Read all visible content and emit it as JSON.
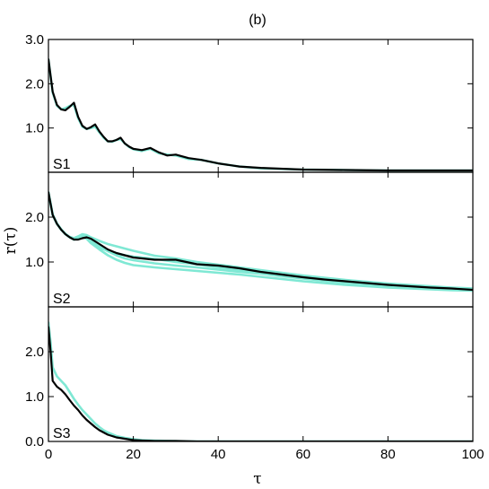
{
  "figure": {
    "title": "(b)",
    "xlabel": "τ",
    "ylabel": "r(τ)"
  },
  "chart_data": {
    "type": "line",
    "title": "(b)",
    "xlabel": "τ",
    "ylabel": "r(τ)",
    "xlim": [
      0,
      100
    ],
    "xticks": [
      0,
      20,
      40,
      60,
      80,
      100
    ],
    "xtick_labels": [
      "0",
      "20",
      "40",
      "60",
      "80",
      "100"
    ],
    "grid": false,
    "colors": {
      "ensemble": "#7fe8d4",
      "main": "#000000"
    },
    "panels": [
      {
        "label": "S1",
        "ylim": [
          0,
          3.0
        ],
        "yticks": [
          1.0,
          2.0,
          3.0
        ],
        "ytick_labels": [
          "1.0",
          "2.0",
          "3.0"
        ],
        "series": [
          {
            "role": "ensemble",
            "x": [
              0,
              1,
              2,
              3,
              4,
              5,
              6,
              7,
              8,
              9,
              10,
              11,
              12,
              13,
              14,
              15,
              16,
              17,
              18,
              19,
              20,
              22,
              24,
              26,
              28,
              30,
              33,
              36,
              40,
              45,
              50,
              60,
              70,
              80,
              90,
              100
            ],
            "y": [
              2.55,
              1.8,
              1.5,
              1.42,
              1.45,
              1.5,
              1.52,
              1.22,
              1.03,
              0.98,
              1.0,
              1.03,
              0.9,
              0.78,
              0.7,
              0.69,
              0.73,
              0.75,
              0.65,
              0.57,
              0.52,
              0.48,
              0.53,
              0.43,
              0.4,
              0.38,
              0.3,
              0.28,
              0.2,
              0.13,
              0.09,
              0.06,
              0.05,
              0.04,
              0.04,
              0.04
            ]
          },
          {
            "role": "main",
            "x": [
              0,
              1,
              2,
              3,
              4,
              5,
              6,
              7,
              8,
              9,
              10,
              11,
              12,
              13,
              14,
              15,
              16,
              17,
              18,
              19,
              20,
              22,
              24,
              26,
              28,
              30,
              33,
              36,
              40,
              45,
              50,
              60,
              70,
              80,
              90,
              100
            ],
            "y": [
              2.55,
              1.82,
              1.52,
              1.42,
              1.4,
              1.48,
              1.57,
              1.25,
              1.05,
              0.98,
              1.02,
              1.08,
              0.92,
              0.8,
              0.7,
              0.7,
              0.73,
              0.78,
              0.65,
              0.58,
              0.53,
              0.5,
              0.55,
              0.45,
              0.38,
              0.4,
              0.32,
              0.28,
              0.2,
              0.13,
              0.1,
              0.06,
              0.05,
              0.04,
              0.04,
              0.04
            ]
          }
        ]
      },
      {
        "label": "S2",
        "ylim": [
          0,
          3.0
        ],
        "yticks": [
          1.0,
          2.0
        ],
        "ytick_labels": [
          "1.0",
          "2.0"
        ],
        "series": [
          {
            "role": "ensemble",
            "x": [
              0,
              1,
              2,
              3,
              4,
              5,
              6,
              7,
              8,
              9,
              10,
              12,
              14,
              16,
              18,
              20,
              25,
              30,
              35,
              40,
              45,
              50,
              55,
              60,
              65,
              70,
              75,
              80,
              85,
              90,
              95,
              100
            ],
            "y": [
              2.55,
              2.05,
              1.85,
              1.72,
              1.62,
              1.55,
              1.5,
              1.52,
              1.56,
              1.52,
              1.43,
              1.32,
              1.25,
              1.2,
              1.15,
              1.12,
              1.07,
              1.0,
              0.95,
              0.88,
              0.82,
              0.78,
              0.72,
              0.67,
              0.62,
              0.57,
              0.53,
              0.5,
              0.47,
              0.43,
              0.41,
              0.39
            ]
          },
          {
            "role": "ensemble",
            "x": [
              0,
              1,
              2,
              3,
              4,
              5,
              6,
              7,
              8,
              9,
              10,
              12,
              14,
              16,
              18,
              20,
              25,
              30,
              35,
              40,
              45,
              50,
              55,
              60,
              65,
              70,
              75,
              80,
              85,
              90,
              95,
              100
            ],
            "y": [
              2.55,
              2.05,
              1.85,
              1.72,
              1.62,
              1.55,
              1.52,
              1.55,
              1.58,
              1.55,
              1.48,
              1.35,
              1.24,
              1.15,
              1.08,
              1.04,
              0.97,
              0.92,
              0.88,
              0.83,
              0.78,
              0.74,
              0.68,
              0.63,
              0.58,
              0.54,
              0.5,
              0.47,
              0.45,
              0.42,
              0.4,
              0.38
            ]
          },
          {
            "role": "ensemble",
            "x": [
              0,
              1,
              2,
              3,
              4,
              5,
              6,
              7,
              8,
              9,
              10,
              12,
              14,
              16,
              18,
              20,
              25,
              30,
              35,
              40,
              45,
              50,
              55,
              60,
              65,
              70,
              75,
              80,
              85,
              90,
              95,
              100
            ],
            "y": [
              2.55,
              2.05,
              1.85,
              1.72,
              1.62,
              1.55,
              1.5,
              1.52,
              1.56,
              1.52,
              1.42,
              1.28,
              1.15,
              1.05,
              0.98,
              0.93,
              0.88,
              0.84,
              0.8,
              0.76,
              0.72,
              0.67,
              0.62,
              0.57,
              0.53,
              0.49,
              0.46,
              0.43,
              0.41,
              0.39,
              0.37,
              0.36
            ]
          },
          {
            "role": "ensemble",
            "x": [
              0,
              1,
              2,
              3,
              4,
              5,
              6,
              7,
              8,
              9,
              10,
              12,
              14,
              16,
              18,
              20,
              25,
              30,
              35,
              40,
              45,
              50,
              55,
              60,
              65,
              70,
              75,
              80,
              85,
              90,
              95,
              100
            ],
            "y": [
              2.55,
              2.06,
              1.86,
              1.73,
              1.63,
              1.56,
              1.53,
              1.57,
              1.62,
              1.6,
              1.55,
              1.47,
              1.4,
              1.35,
              1.3,
              1.25,
              1.14,
              1.08,
              1.0,
              0.94,
              0.88,
              0.82,
              0.76,
              0.7,
              0.65,
              0.6,
              0.56,
              0.52,
              0.49,
              0.46,
              0.43,
              0.41
            ]
          },
          {
            "role": "main",
            "x": [
              0,
              1,
              2,
              3,
              4,
              5,
              6,
              7,
              8,
              9,
              10,
              12,
              14,
              16,
              18,
              20,
              25,
              30,
              35,
              40,
              45,
              50,
              55,
              60,
              65,
              70,
              75,
              80,
              85,
              90,
              95,
              100
            ],
            "y": [
              2.55,
              2.05,
              1.85,
              1.72,
              1.62,
              1.55,
              1.5,
              1.5,
              1.53,
              1.55,
              1.52,
              1.4,
              1.28,
              1.2,
              1.15,
              1.1,
              1.05,
              1.05,
              0.95,
              0.92,
              0.86,
              0.78,
              0.72,
              0.66,
              0.61,
              0.57,
              0.53,
              0.49,
              0.46,
              0.43,
              0.41,
              0.38
            ]
          }
        ]
      },
      {
        "label": "S3",
        "ylim": [
          0,
          3.0
        ],
        "yticks": [
          0.0,
          1.0,
          2.0
        ],
        "ytick_labels": [
          "0.0",
          "1.0",
          "2.0"
        ],
        "series": [
          {
            "role": "ensemble",
            "x": [
              0,
              0.5,
              1,
              2,
              3,
              4,
              5,
              6,
              7,
              8,
              9,
              10,
              11,
              12,
              13,
              14,
              15,
              16,
              18,
              20,
              22,
              25,
              30,
              35,
              40,
              50,
              60,
              70,
              80,
              90,
              100
            ],
            "y": [
              2.65,
              2.2,
              1.65,
              1.45,
              1.35,
              1.25,
              1.1,
              0.95,
              0.82,
              0.7,
              0.6,
              0.5,
              0.4,
              0.32,
              0.25,
              0.2,
              0.16,
              0.12,
              0.08,
              0.05,
              0.03,
              0.02,
              0.01,
              0.0,
              0.0,
              0.0,
              0.0,
              0.0,
              0.0,
              0.0,
              0.0
            ]
          },
          {
            "role": "main",
            "x": [
              0,
              0.5,
              1,
              2,
              3,
              4,
              5,
              6,
              7,
              8,
              9,
              10,
              11,
              12,
              13,
              14,
              15,
              16,
              18,
              20,
              22,
              25,
              30,
              35,
              40,
              50,
              60,
              70,
              80,
              90,
              100
            ],
            "y": [
              2.55,
              2.0,
              1.35,
              1.22,
              1.15,
              1.05,
              0.92,
              0.8,
              0.7,
              0.58,
              0.48,
              0.4,
              0.32,
              0.25,
              0.2,
              0.15,
              0.12,
              0.09,
              0.06,
              0.03,
              0.02,
              0.01,
              0.01,
              0.0,
              0.0,
              0.0,
              0.0,
              0.0,
              0.0,
              0.0,
              0.0
            ]
          }
        ]
      }
    ]
  }
}
